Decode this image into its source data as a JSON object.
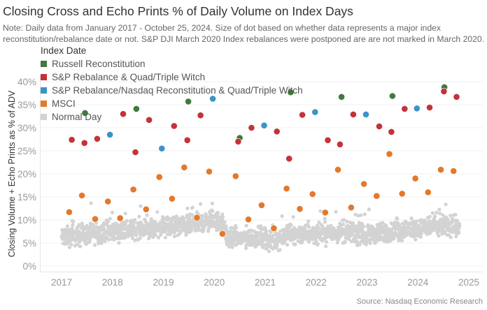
{
  "chart_data": {
    "type": "scatter",
    "title": "Closing Cross and Echo Prints % of Daily Volume on Index Days",
    "subtitle": "Note: Daily data from January 2017 - October 25, 2024. Size of dot based on whether data represents a major index reconstitution/rebalance date or not. S&P DJI March 2020 Index rebalances were postponed are are not marked in March 2020.",
    "xlabel": "",
    "ylabel": "Closing Volume + Echo Prints as % of ADV",
    "xlim": [
      2016.85,
      2025.05
    ],
    "ylim": [
      -2,
      41
    ],
    "x_ticks": [
      "2017",
      "2018",
      "2019",
      "2020",
      "2021",
      "2022",
      "2023",
      "2024",
      "2025"
    ],
    "y_ticks": [
      "0%",
      "5%",
      "10%",
      "15%",
      "20%",
      "25%",
      "30%",
      "35%",
      "40%"
    ],
    "grid": true,
    "legend_title": "Index Date",
    "legend_placement": "top-left",
    "series": [
      {
        "name": "Russell Reconstitution",
        "color": "#3f7a3f",
        "points": [
          [
            2017.46,
            33.2
          ],
          [
            2018.47,
            34.1
          ],
          [
            2019.49,
            35.7
          ],
          [
            2020.5,
            27.8
          ],
          [
            2021.5,
            37.7
          ],
          [
            2022.5,
            36.7
          ],
          [
            2023.5,
            36.9
          ],
          [
            2024.52,
            38.8
          ]
        ]
      },
      {
        "name": "S&P Rebalance & Quad/Triple Witch",
        "color": "#c4323a",
        "points": [
          [
            2017.2,
            27.4
          ],
          [
            2017.45,
            26.7
          ],
          [
            2017.7,
            27.6
          ],
          [
            2018.21,
            33.0
          ],
          [
            2018.45,
            24.7
          ],
          [
            2018.72,
            31.7
          ],
          [
            2019.21,
            30.4
          ],
          [
            2019.47,
            27.3
          ],
          [
            2019.73,
            32.7
          ],
          [
            2020.47,
            27.0
          ],
          [
            2020.73,
            30.0
          ],
          [
            2021.23,
            29.2
          ],
          [
            2021.47,
            23.3
          ],
          [
            2021.73,
            32.8
          ],
          [
            2022.23,
            27.3
          ],
          [
            2022.47,
            26.4
          ],
          [
            2022.73,
            32.9
          ],
          [
            2023.24,
            30.3
          ],
          [
            2023.48,
            29.1
          ],
          [
            2023.74,
            34.1
          ],
          [
            2024.23,
            34.4
          ],
          [
            2024.51,
            37.9
          ],
          [
            2024.76,
            36.7
          ]
        ]
      },
      {
        "name": "S&P Rebalance/Nasdaq Reconstitution & Quad/Triple Witch",
        "color": "#3a94c6",
        "points": [
          [
            2017.95,
            28.5
          ],
          [
            2018.97,
            25.5
          ],
          [
            2019.97,
            36.3
          ],
          [
            2020.98,
            30.5
          ],
          [
            2021.98,
            33.4
          ],
          [
            2022.98,
            32.9
          ],
          [
            2023.98,
            34.2
          ]
        ]
      },
      {
        "name": "MSCI",
        "color": "#e4782c",
        "points": [
          [
            2017.15,
            11.7
          ],
          [
            2017.4,
            15.3
          ],
          [
            2017.66,
            10.2
          ],
          [
            2017.91,
            14.0
          ],
          [
            2018.15,
            10.4
          ],
          [
            2018.41,
            16.6
          ],
          [
            2018.66,
            12.3
          ],
          [
            2018.92,
            19.3
          ],
          [
            2019.17,
            14.6
          ],
          [
            2019.41,
            21.4
          ],
          [
            2019.66,
            10.5
          ],
          [
            2019.9,
            20.5
          ],
          [
            2020.16,
            7.0
          ],
          [
            2020.42,
            19.5
          ],
          [
            2020.67,
            10.1
          ],
          [
            2020.93,
            13.2
          ],
          [
            2021.17,
            8.2
          ],
          [
            2021.42,
            16.8
          ],
          [
            2021.68,
            12.4
          ],
          [
            2021.93,
            15.6
          ],
          [
            2022.18,
            11.6
          ],
          [
            2022.43,
            20.9
          ],
          [
            2022.69,
            12.7
          ],
          [
            2022.94,
            17.8
          ],
          [
            2023.19,
            15.2
          ],
          [
            2023.44,
            24.3
          ],
          [
            2023.69,
            15.7
          ],
          [
            2023.95,
            19.0
          ],
          [
            2024.2,
            16.0
          ],
          [
            2024.45,
            20.9
          ],
          [
            2024.7,
            20.6
          ]
        ]
      },
      {
        "name": "Normal Day",
        "color": "#d3d3d3",
        "trend": [
          [
            2017.0,
            6.2
          ],
          [
            2017.5,
            6.8
          ],
          [
            2018.0,
            7.6
          ],
          [
            2018.5,
            8.0
          ],
          [
            2019.0,
            8.4
          ],
          [
            2019.5,
            8.8
          ],
          [
            2019.95,
            10.0
          ],
          [
            2020.15,
            9.5
          ],
          [
            2020.25,
            6.0
          ],
          [
            2020.6,
            6.0
          ],
          [
            2021.0,
            6.4
          ],
          [
            2021.1,
            5.0
          ],
          [
            2021.4,
            6.8
          ],
          [
            2022.0,
            7.0
          ],
          [
            2022.5,
            7.2
          ],
          [
            2023.0,
            6.8
          ],
          [
            2023.5,
            7.4
          ],
          [
            2024.0,
            8.2
          ],
          [
            2024.5,
            8.8
          ],
          [
            2024.82,
            8.5
          ]
        ],
        "spread": 1.6
      }
    ],
    "source": "Source: Nasdaq Economic Research"
  }
}
